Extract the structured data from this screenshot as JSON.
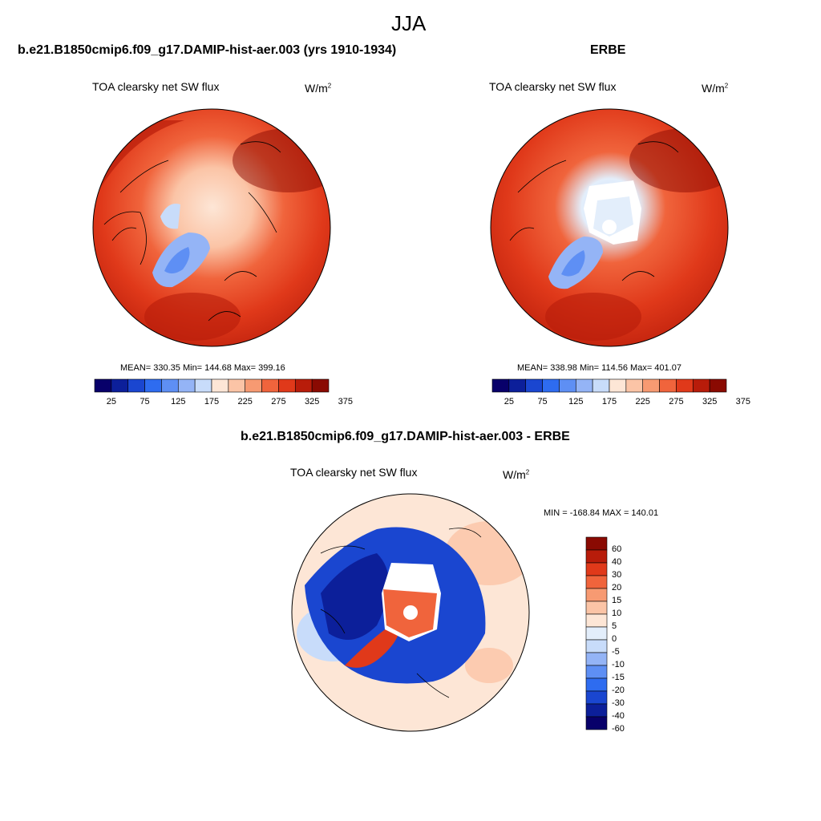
{
  "figure": {
    "title": "JJA",
    "unit_label": "W/m",
    "unit_sup": "2"
  },
  "panels": {
    "model": {
      "title": "b.e21.B1850cmip6.f09_g17.DAMIP-hist-aer.003 (yrs 1910-1934)",
      "variable": "TOA clearsky net SW flux",
      "stats": "MEAN= 330.35  Min= 144.68  Max= 399.16"
    },
    "obs": {
      "title": "ERBE",
      "variable": "TOA clearsky net SW flux",
      "stats": "MEAN= 338.98  Min= 114.56  Max= 401.07"
    },
    "diff": {
      "title": "b.e21.B1850cmip6.f09_g17.DAMIP-hist-aer.003 - ERBE",
      "variable": "TOA clearsky net SW flux",
      "stats": "MIN = -168.84 MAX = 140.01"
    }
  },
  "colorbar_main": {
    "colors": [
      "#08006a",
      "#0c1f9a",
      "#1a46d0",
      "#2e6cf0",
      "#5e8ff4",
      "#94b4f6",
      "#c8dcfa",
      "#fde6d6",
      "#fbc4a6",
      "#f79a72",
      "#f0643c",
      "#e0391a",
      "#b81c0a",
      "#8a0a02"
    ],
    "tick_labels": [
      "25",
      "75",
      "125",
      "175",
      "225",
      "275",
      "325",
      "375"
    ]
  },
  "colorbar_diff": {
    "colors": [
      "#8a0a02",
      "#b81c0a",
      "#e0391a",
      "#f0643c",
      "#f79a72",
      "#fbc4a6",
      "#fde6d6",
      "#e3eefb",
      "#c8dcfa",
      "#94b4f6",
      "#5e8ff4",
      "#2e6cf0",
      "#1a46d0",
      "#0c1f9a",
      "#08006a"
    ],
    "tick_labels": [
      "60",
      "40",
      "30",
      "20",
      "15",
      "10",
      "5",
      "0",
      "-5",
      "-10",
      "-15",
      "-20",
      "-30",
      "-40",
      "-60"
    ]
  }
}
